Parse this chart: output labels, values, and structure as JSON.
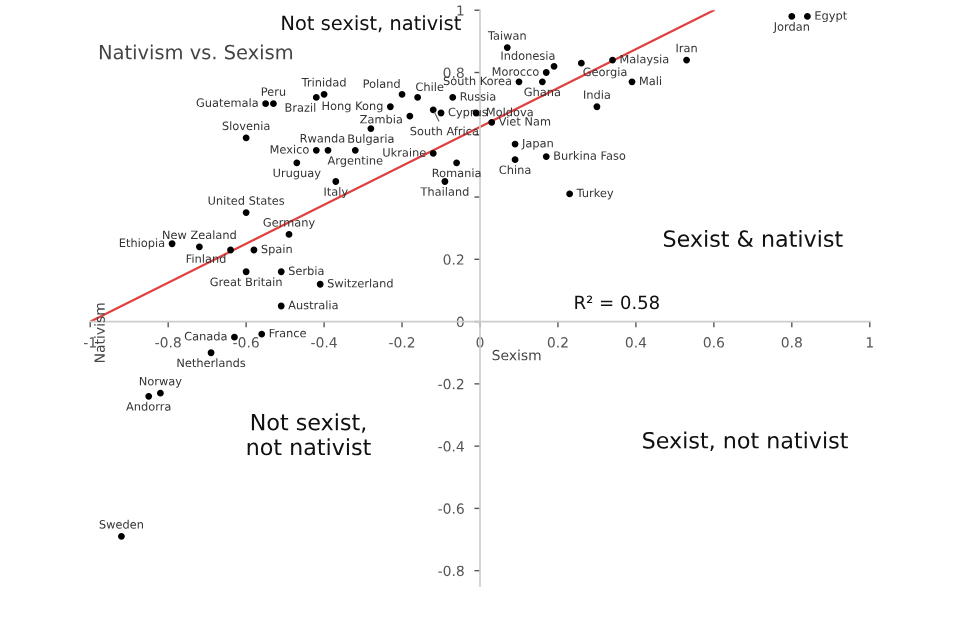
{
  "chart_data": {
    "type": "scatter",
    "title": "Nativism vs. Sexism",
    "xlabel": "Sexism",
    "ylabel": "Nativism",
    "xlim": [
      -1,
      1
    ],
    "ylim": [
      -0.85,
      1
    ],
    "xticks": [
      -1,
      -0.8,
      -0.6,
      -0.4,
      -0.2,
      0,
      0.2,
      0.4,
      0.6,
      0.8,
      1
    ],
    "yticks": [
      -0.8,
      -0.6,
      -0.4,
      -0.2,
      0,
      0.2,
      {
        "value": 0.4,
        "label": null
      },
      {
        "value": 0.6,
        "label": null
      },
      0.8,
      1
    ],
    "grid": false,
    "legend": false,
    "marker": "circle",
    "annotations": [
      "Not sexist, nativist",
      "Sexist & nativist",
      "Not sexist,\nnot nativist",
      "Sexist, not nativist",
      "R² = 0.58"
    ],
    "series": [
      {
        "type": "line",
        "marker": "none",
        "color": "#e04040",
        "x": [
          -1,
          0.6
        ],
        "values": [
          0,
          1
        ]
      },
      {
        "name": "Trinidad",
        "color": "#000000",
        "x": [
          -0.4
        ],
        "values": [
          0.73
        ]
      },
      {
        "name": "Brazil",
        "color": "#000000",
        "x": [
          -0.42
        ],
        "values": [
          0.72
        ]
      },
      {
        "name": "Peru",
        "color": "#000000",
        "x": [
          -0.53
        ],
        "values": [
          0.7
        ]
      },
      {
        "name": "Guatemala",
        "color": "#000000",
        "x": [
          -0.55
        ],
        "values": [
          0.7
        ]
      },
      {
        "name": "Slovenia",
        "color": "#000000",
        "x": [
          -0.6
        ],
        "values": [
          0.59
        ]
      },
      {
        "name": "Mexico",
        "color": "#000000",
        "x": [
          -0.42
        ],
        "values": [
          0.55
        ]
      },
      {
        "name": "Rwanda",
        "color": "#000000",
        "x": [
          -0.39
        ],
        "values": [
          0.55
        ]
      },
      {
        "name": "Argentine",
        "color": "#000000",
        "x": [
          -0.32
        ],
        "values": [
          0.55
        ]
      },
      {
        "name": "Bulgaria",
        "color": "#000000",
        "x": [
          -0.28
        ],
        "values": [
          0.62
        ]
      },
      {
        "name": "Zambia",
        "color": "#000000",
        "x": [
          -0.18
        ],
        "values": [
          0.66
        ]
      },
      {
        "name": "Uruguay",
        "color": "#000000",
        "x": [
          -0.47
        ],
        "values": [
          0.51
        ]
      },
      {
        "name": "Italy",
        "color": "#000000",
        "x": [
          -0.37
        ],
        "values": [
          0.45
        ]
      },
      {
        "name": "United States",
        "color": "#000000",
        "x": [
          -0.6
        ],
        "values": [
          0.35
        ]
      },
      {
        "name": "Germany",
        "color": "#000000",
        "x": [
          -0.49
        ],
        "values": [
          0.28
        ]
      },
      {
        "name": "Ethiopia",
        "color": "#000000",
        "x": [
          -0.79
        ],
        "values": [
          0.25
        ]
      },
      {
        "name": "New Zealand",
        "color": "#000000",
        "x": [
          -0.72
        ],
        "values": [
          0.24
        ]
      },
      {
        "name": "Finland",
        "color": "#000000",
        "x": [
          -0.64
        ],
        "values": [
          0.23
        ]
      },
      {
        "name": "Spain",
        "color": "#000000",
        "x": [
          -0.58
        ],
        "values": [
          0.23
        ]
      },
      {
        "name": "Great Britain",
        "color": "#000000",
        "x": [
          -0.6
        ],
        "values": [
          0.16
        ]
      },
      {
        "name": "Serbia",
        "color": "#000000",
        "x": [
          -0.51
        ],
        "values": [
          0.16
        ]
      },
      {
        "name": "Switzerland",
        "color": "#000000",
        "x": [
          -0.41
        ],
        "values": [
          0.12
        ]
      },
      {
        "name": "Australia",
        "color": "#000000",
        "x": [
          -0.51
        ],
        "values": [
          0.05
        ]
      },
      {
        "name": "Poland",
        "color": "#000000",
        "x": [
          -0.2
        ],
        "values": [
          0.73
        ]
      },
      {
        "name": "Hong Kong",
        "color": "#000000",
        "x": [
          -0.23
        ],
        "values": [
          0.69
        ]
      },
      {
        "name": "Chile",
        "color": "#000000",
        "x": [
          -0.16
        ],
        "values": [
          0.72
        ]
      },
      {
        "name": "Russia",
        "color": "#000000",
        "x": [
          -0.07
        ],
        "values": [
          0.72
        ]
      },
      {
        "name": "South Africa",
        "color": "#000000",
        "x": [
          -0.12
        ],
        "values": [
          0.68
        ]
      },
      {
        "name": "Cyprus",
        "color": "#000000",
        "x": [
          -0.1
        ],
        "values": [
          0.67
        ]
      },
      {
        "name": "Ukraine",
        "color": "#000000",
        "x": [
          -0.12
        ],
        "values": [
          0.54
        ]
      },
      {
        "name": "Romania",
        "color": "#000000",
        "x": [
          -0.06
        ],
        "values": [
          0.51
        ]
      },
      {
        "name": "Thailand",
        "color": "#000000",
        "x": [
          -0.09
        ],
        "values": [
          0.45
        ]
      },
      {
        "name": "Canada",
        "color": "#000000",
        "x": [
          -0.63
        ],
        "values": [
          -0.05
        ]
      },
      {
        "name": "France",
        "color": "#000000",
        "x": [
          -0.56
        ],
        "values": [
          -0.04
        ]
      },
      {
        "name": "Netherlands",
        "color": "#000000",
        "x": [
          -0.69
        ],
        "values": [
          -0.1
        ]
      },
      {
        "name": "Norway",
        "color": "#000000",
        "x": [
          -0.82
        ],
        "values": [
          -0.23
        ]
      },
      {
        "name": "Andorra",
        "color": "#000000",
        "x": [
          -0.85
        ],
        "values": [
          -0.24
        ]
      },
      {
        "name": "Sweden",
        "color": "#000000",
        "x": [
          -0.92
        ],
        "values": [
          -0.69
        ]
      },
      {
        "name": "Taiwan",
        "color": "#000000",
        "x": [
          0.07
        ],
        "values": [
          0.88
        ]
      },
      {
        "name": "Indonesia",
        "color": "#000000",
        "x": [
          0.19
        ],
        "values": [
          0.82
        ]
      },
      {
        "name": "Georgia",
        "color": "#000000",
        "x": [
          0.26
        ],
        "values": [
          0.83
        ]
      },
      {
        "name": "Morocco",
        "color": "#000000",
        "x": [
          0.17
        ],
        "values": [
          0.8
        ]
      },
      {
        "name": "South Korea",
        "color": "#000000",
        "x": [
          0.1
        ],
        "values": [
          0.77
        ]
      },
      {
        "name": "Ghana",
        "color": "#000000",
        "x": [
          0.16
        ],
        "values": [
          0.77
        ]
      },
      {
        "name": "Malaysia",
        "color": "#000000",
        "x": [
          0.34
        ],
        "values": [
          0.84
        ]
      },
      {
        "name": "Iran",
        "color": "#000000",
        "x": [
          0.53
        ],
        "values": [
          0.84
        ]
      },
      {
        "name": "Mali",
        "color": "#000000",
        "x": [
          0.39
        ],
        "values": [
          0.77
        ]
      },
      {
        "name": "India",
        "color": "#000000",
        "x": [
          0.3
        ],
        "values": [
          0.69
        ]
      },
      {
        "name": "Moldova",
        "color": "#000000",
        "x": [
          -0.01
        ],
        "values": [
          0.67
        ]
      },
      {
        "name": "Viet Nam",
        "color": "#000000",
        "x": [
          0.03
        ],
        "values": [
          0.64
        ]
      },
      {
        "name": "Japan",
        "color": "#000000",
        "x": [
          0.09
        ],
        "values": [
          0.57
        ]
      },
      {
        "name": "China",
        "color": "#000000",
        "x": [
          0.09
        ],
        "values": [
          0.52
        ]
      },
      {
        "name": "Burkina Faso",
        "color": "#000000",
        "x": [
          0.17
        ],
        "values": [
          0.53
        ]
      },
      {
        "name": "Turkey",
        "color": "#000000",
        "x": [
          0.23
        ],
        "values": [
          0.41
        ]
      },
      {
        "name": "Jordan",
        "color": "#000000",
        "x": [
          0.8
        ],
        "values": [
          0.98
        ]
      },
      {
        "name": "Egypt",
        "color": "#000000",
        "x": [
          0.84
        ],
        "values": [
          0.98
        ]
      }
    ]
  }
}
